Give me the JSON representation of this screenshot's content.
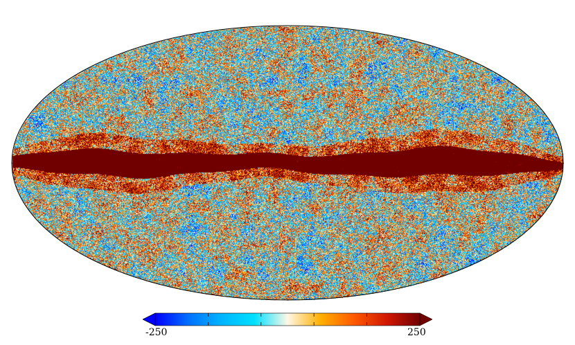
{
  "colormap": {
    "stops": [
      "#0000ff",
      "#0070ff",
      "#00b4ff",
      "#00e0ff",
      "#fff7e6",
      "#ffb000",
      "#ff5a00",
      "#d01800",
      "#700000"
    ],
    "min_label": "-250",
    "max_label": "250",
    "vmin": -250,
    "vmax": 250,
    "extend": "both"
  },
  "map": {
    "projection": "mollweide",
    "outline_color": "#000000",
    "galactic_plane_color": "#700000"
  }
}
